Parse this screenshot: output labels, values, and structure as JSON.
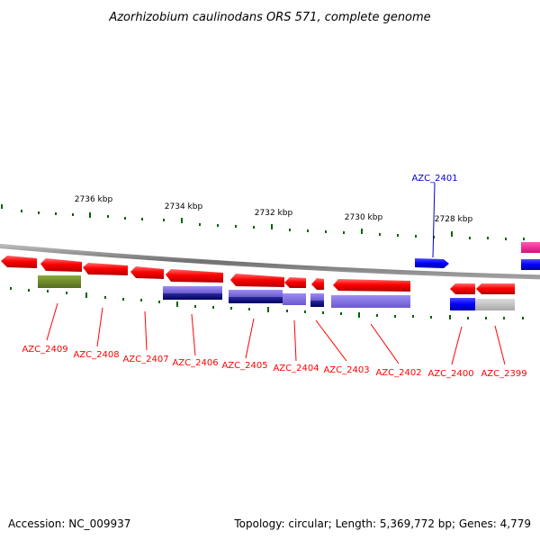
{
  "header": {
    "title": "Azorhizobium caulinodans ORS 571, complete genome"
  },
  "footer": {
    "accession": "Accession: NC_009937",
    "topology": "Topology: circular; Length: 5,369,772 bp; Genes: 4,779"
  },
  "scale": {
    "ticks": [
      "2736 kbp",
      "2734 kbp",
      "2732 kbp",
      "2730 kbp",
      "2728 kbp"
    ]
  },
  "genes": [
    {
      "name": "AZC_2409",
      "color": "#ff0000"
    },
    {
      "name": "AZC_2408",
      "color": "#ff0000"
    },
    {
      "name": "AZC_2407",
      "color": "#ff0000"
    },
    {
      "name": "AZC_2406",
      "color": "#ff0000"
    },
    {
      "name": "AZC_2405",
      "color": "#ff0000"
    },
    {
      "name": "AZC_2404",
      "color": "#ff0000"
    },
    {
      "name": "AZC_2403",
      "color": "#ff0000"
    },
    {
      "name": "AZC_2402",
      "color": "#ff0000"
    },
    {
      "name": "AZC_2401",
      "color": "#0000cc"
    },
    {
      "name": "AZC_2400",
      "color": "#ff0000"
    },
    {
      "name": "AZC_2399",
      "color": "#ff0000"
    }
  ],
  "colors": {
    "forward_gene": "#0000ff",
    "reverse_gene": "#ff0000",
    "cog_green": "#6b8e23",
    "cog_purple": "#7b68ee",
    "cog_navy": "#000080",
    "cog_grey": "#c0c0c0",
    "cog_magenta": "#ff1493",
    "tick_green": "#006400",
    "backbone": "#808080"
  }
}
